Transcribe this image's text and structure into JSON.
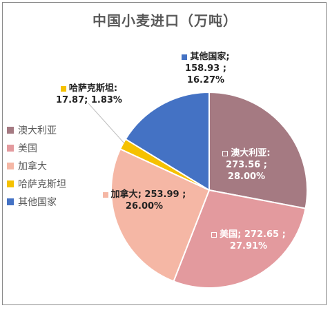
{
  "chart_data": {
    "type": "pie",
    "title": "中国小麦进口（万吨）",
    "slices": [
      {
        "name": "澳大利亚",
        "value": 273.56,
        "pct": "28.00%",
        "value_text": "273.56 ;",
        "color": "#A57A82"
      },
      {
        "name": "美国",
        "value": 272.65,
        "pct": "27.91%",
        "value_text": "272.65 ;",
        "color": "#E39A9E"
      },
      {
        "name": "加拿大",
        "value": 253.99,
        "pct": "26.00%",
        "value_text": "253.99 ;",
        "color": "#F5B7A5"
      },
      {
        "name": "哈萨克斯坦",
        "value": 17.87,
        "pct": "1.83%",
        "value_text": "17.87; 1.83%",
        "color": "#F5C100"
      },
      {
        "name": "其他国家",
        "value": 158.93,
        "pct": "16.27%",
        "value_text": "158.93 ;",
        "color": "#4472C4"
      }
    ],
    "legend_position": "left",
    "labels": {
      "aus_name": "澳大利亚:",
      "aus_val": "273.56 ;",
      "aus_pct": "28.00%",
      "us_name": "美国",
      "us_val": "; 272.65 ;",
      "us_pct": "27.91%",
      "ca_name": "加拿大",
      "ca_val": "; 253.99 ;",
      "ca_pct": "26.00%",
      "kz_name": "哈萨克斯坦:",
      "kz_rest": "17.87; 1.83%",
      "ot_name": "其他国家;",
      "ot_val": "158.93 ;",
      "ot_pct": "16.27%"
    }
  }
}
